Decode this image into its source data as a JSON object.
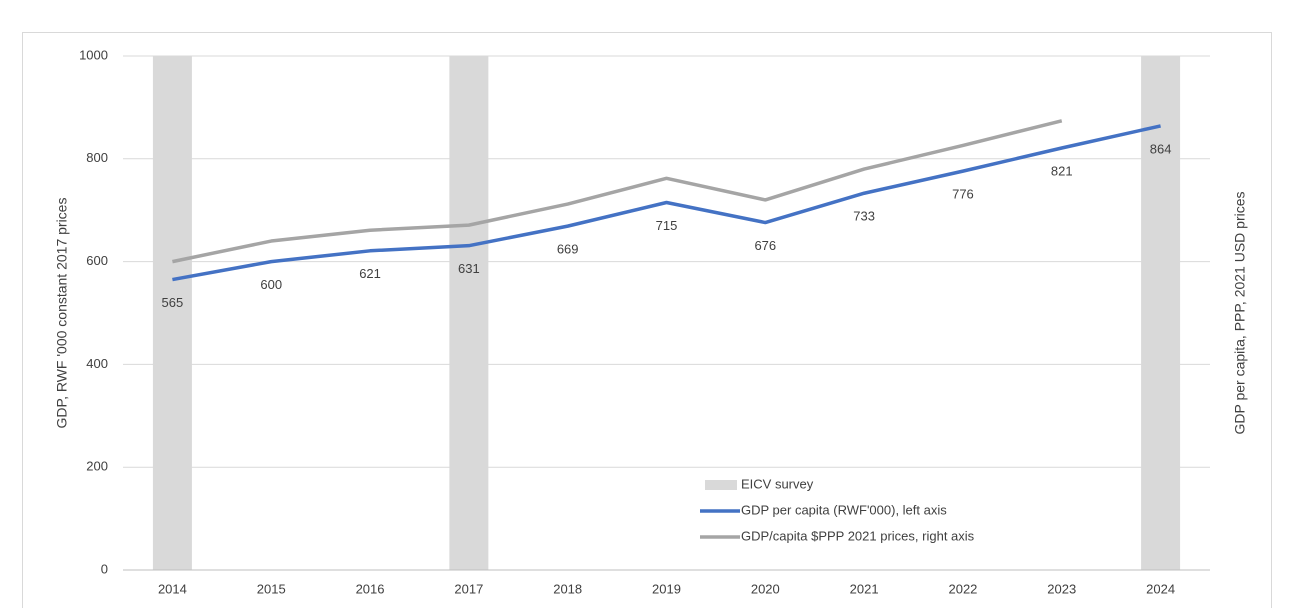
{
  "chart_data": {
    "type": "line",
    "ylabel": "GDP, RWF '000 constant 2017 prices",
    "y2label": "GDP per capita, PPP, 2021 USD prices",
    "categories": [
      "2014",
      "2015",
      "2016",
      "2017",
      "2018",
      "2019",
      "2020",
      "2021",
      "2022",
      "2023",
      "2024"
    ],
    "ylim": [
      0,
      1000
    ],
    "yticks": [
      0,
      200,
      400,
      600,
      800,
      1000
    ],
    "grid": true,
    "series": [
      {
        "name": "EICV survey",
        "type": "bar",
        "color": "#d9d9d9",
        "values": [
          1000,
          null,
          null,
          1000,
          null,
          null,
          null,
          null,
          null,
          null,
          1000
        ]
      },
      {
        "name": "GDP per capita (RWF'000), left axis",
        "type": "line",
        "color": "#4472c4",
        "data_labels": true,
        "values": [
          565,
          600,
          621,
          631,
          669,
          715,
          676,
          733,
          776,
          821,
          864
        ]
      },
      {
        "name": "GDP/capita $PPP 2021 prices, right axis",
        "type": "line",
        "color": "#a5a5a5",
        "values": [
          600,
          640,
          661,
          671,
          712,
          762,
          720,
          780,
          826,
          874,
          null
        ]
      }
    ]
  }
}
